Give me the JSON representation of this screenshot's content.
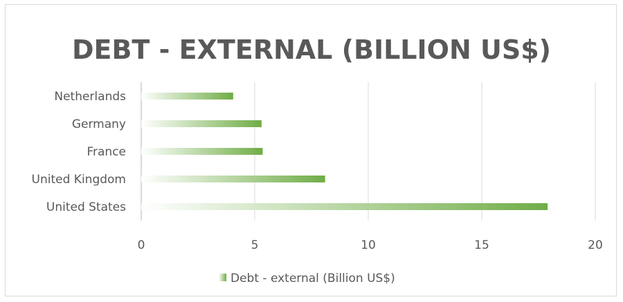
{
  "chart_data": {
    "type": "bar",
    "orientation": "horizontal",
    "title": "DEBT - EXTERNAL (BILLION US$)",
    "categories": [
      "United States",
      "United Kingdom",
      "France",
      "Germany",
      "Netherlands"
    ],
    "series": [
      {
        "name": "Debt - external (Billion US$)",
        "values": [
          17.9,
          8.1,
          5.35,
          5.3,
          4.05
        ]
      }
    ],
    "xlim": [
      0,
      20
    ],
    "xticks": [
      "0",
      "5",
      "10",
      "15",
      "20"
    ],
    "grid": true,
    "legend_position": "bottom",
    "colors": {
      "bar": "#70ad47",
      "bar_fade": "#ffffff",
      "text": "#595959",
      "grid": "#d9d9d9"
    }
  }
}
